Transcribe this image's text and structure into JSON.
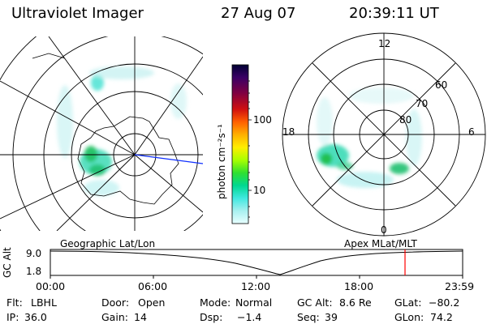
{
  "header": {
    "title": "Ultraviolet Imager",
    "date": "27 Aug 07",
    "time": "20:39:11 UT"
  },
  "colorbar": {
    "label": "photon cm⁻²s⁻¹",
    "ticks": [
      "100",
      "10"
    ],
    "colors": [
      "#000033",
      "#3a0066",
      "#7a0050",
      "#b00020",
      "#e02000",
      "#ff6000",
      "#ffa000",
      "#ffe000",
      "#c8ff00",
      "#7cff00",
      "#20e040",
      "#00d8a0",
      "#40e8e8",
      "#a8f0f0",
      "#e8ffff"
    ]
  },
  "right_map": {
    "lat_labels": [
      "60",
      "70",
      "80"
    ],
    "mlt_labels": [
      "12",
      "18",
      "6",
      "0"
    ]
  },
  "timeline": {
    "left_label": "Geographic Lat/Lon",
    "right_label": "Apex MLat/MLT",
    "yaxis_title": "GC Alt",
    "y_ticks": [
      "9.0",
      "1.8"
    ],
    "x_ticks": [
      "00:00",
      "06:00",
      "12:00",
      "18:00",
      "23:59"
    ],
    "marker_color": "#ff0000"
  },
  "footer": {
    "row1": [
      {
        "k": "Flt:",
        "v": "LBHL"
      },
      {
        "k": "Door:",
        "v": "Open"
      },
      {
        "k": "Mode:",
        "v": "Normal"
      },
      {
        "k": "GC Alt:",
        "v": "8.6 Re"
      },
      {
        "k": "GLat:",
        "v": "−80.2"
      }
    ],
    "row2": [
      {
        "k": "IP:",
        "v": "36.0"
      },
      {
        "k": "Gain:",
        "v": "14"
      },
      {
        "k": "Dsp:",
        "v": "  −1.4"
      },
      {
        "k": "Seq:",
        "v": "39"
      },
      {
        "k": "GLon:",
        "v": " 74.2"
      }
    ]
  }
}
